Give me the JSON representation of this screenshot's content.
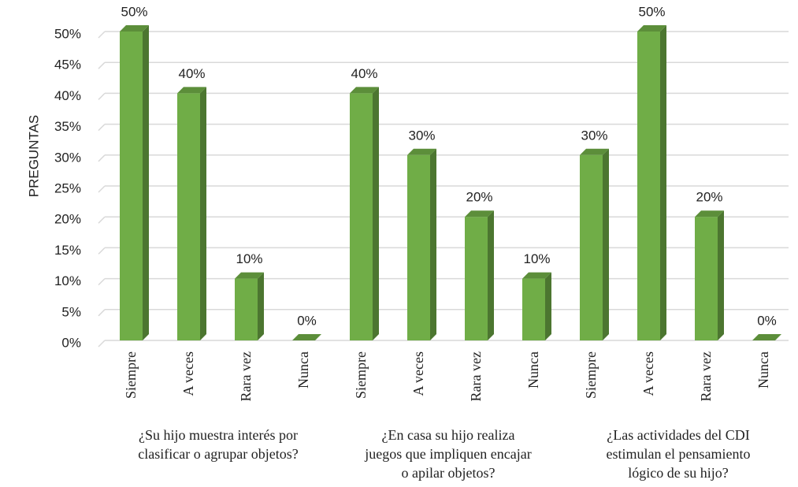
{
  "chart_data": {
    "type": "bar3d",
    "y_axis_label": "PREGUNTAS",
    "categories": [
      "Siempre",
      "A veces",
      "Rara vez",
      "Nunca",
      "Siempre",
      "A veces",
      "Rara vez",
      "Nunca",
      "Siempre",
      "A veces",
      "Rara vez",
      "Nunca"
    ],
    "groups": [
      [
        "¿Su hijo muestra interés por",
        "clasificar o agrupar objetos?"
      ],
      [
        "¿En casa su hijo realiza",
        "juegos que impliquen encajar",
        "o apilar objetos?"
      ],
      [
        "¿Las actividades del CDI",
        "estimulan el pensamiento",
        "lógico de su hijo?"
      ]
    ],
    "values": [
      50,
      40,
      10,
      0,
      40,
      30,
      20,
      10,
      30,
      50,
      20,
      0
    ],
    "value_labels": [
      "50%",
      "40%",
      "10%",
      "0%",
      "40%",
      "30%",
      "20%",
      "10%",
      "30%",
      "50%",
      "20%",
      "0%"
    ],
    "color": "#70ad47",
    "ylim": [
      0,
      50
    ],
    "yticks": [
      {
        "value": 0,
        "label": "0%"
      },
      {
        "value": 5,
        "label": "5%"
      },
      {
        "value": 10,
        "label": "10%"
      },
      {
        "value": 15,
        "label": "15%"
      },
      {
        "value": 20,
        "label": "20%"
      },
      {
        "value": 25,
        "label": "25%"
      },
      {
        "value": 30,
        "label": "30%"
      },
      {
        "value": 35,
        "label": "35%"
      },
      {
        "value": 40,
        "label": "40%"
      },
      {
        "value": 45,
        "label": "45%"
      },
      {
        "value": 50,
        "label": "50%"
      }
    ],
    "grid": true
  }
}
